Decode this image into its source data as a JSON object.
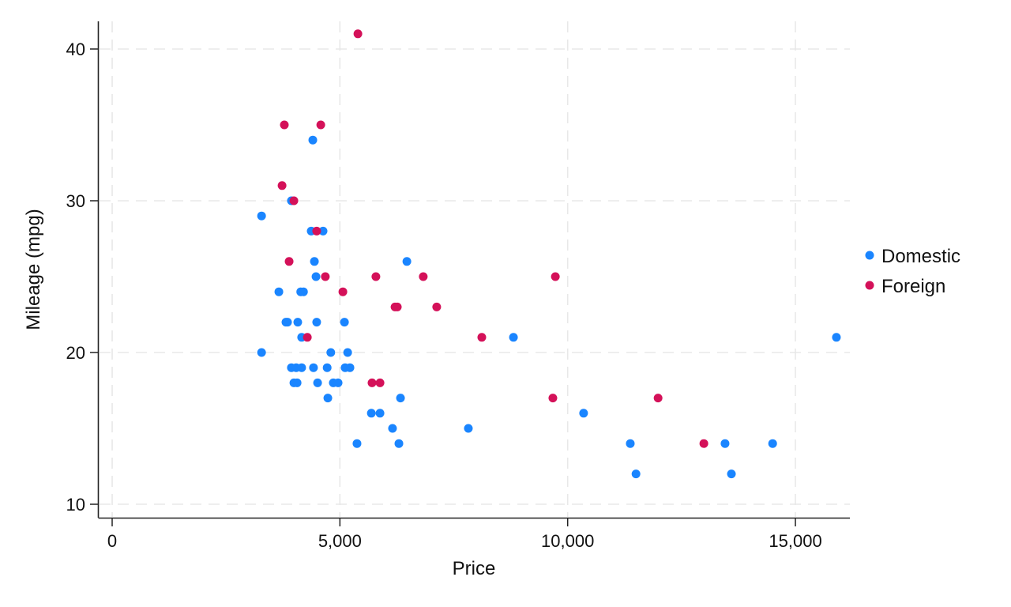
{
  "chart_data": {
    "type": "scatter",
    "title": "",
    "xlabel": "Price",
    "ylabel": "Mileage (mpg)",
    "xlim": [
      -600,
      16000
    ],
    "ylim": [
      9,
      42
    ],
    "xticks": [
      0,
      5000,
      10000,
      15000
    ],
    "xtick_labels": [
      "0",
      "5,000",
      "10,000",
      "15,000"
    ],
    "yticks": [
      10,
      20,
      30,
      40
    ],
    "ytick_labels": [
      "10",
      "20",
      "30",
      "40"
    ],
    "grid": true,
    "legend_position": "right",
    "series": [
      {
        "name": "Domestic",
        "color": "#1a85ff",
        "points": [
          [
            3280,
            29
          ],
          [
            3280,
            20
          ],
          [
            3660,
            24
          ],
          [
            4140,
            24
          ],
          [
            4200,
            24
          ],
          [
            3815,
            22
          ],
          [
            3850,
            22
          ],
          [
            4075,
            22
          ],
          [
            4490,
            22
          ],
          [
            5100,
            22
          ],
          [
            4160,
            21
          ],
          [
            8810,
            21
          ],
          [
            15900,
            21
          ],
          [
            4800,
            20
          ],
          [
            5170,
            20
          ],
          [
            3935,
            19
          ],
          [
            4040,
            19
          ],
          [
            4160,
            19
          ],
          [
            4420,
            19
          ],
          [
            4720,
            19
          ],
          [
            5115,
            19
          ],
          [
            5220,
            19
          ],
          [
            3990,
            18
          ],
          [
            4060,
            18
          ],
          [
            4510,
            18
          ],
          [
            4855,
            18
          ],
          [
            4960,
            18
          ],
          [
            4735,
            17
          ],
          [
            6330,
            17
          ],
          [
            5690,
            16
          ],
          [
            5880,
            16
          ],
          [
            10350,
            16
          ],
          [
            6155,
            15
          ],
          [
            7820,
            15
          ],
          [
            5375,
            14
          ],
          [
            6295,
            14
          ],
          [
            11375,
            14
          ],
          [
            13455,
            14
          ],
          [
            14500,
            14
          ],
          [
            11500,
            12
          ],
          [
            13595,
            12
          ],
          [
            4440,
            26
          ],
          [
            6470,
            26
          ],
          [
            4475,
            25
          ],
          [
            4370,
            28
          ],
          [
            4630,
            28
          ],
          [
            3935,
            30
          ],
          [
            4405,
            34
          ]
        ]
      },
      {
        "name": "Foreign",
        "color": "#d41159",
        "points": [
          [
            5395,
            41
          ],
          [
            3780,
            35
          ],
          [
            4580,
            35
          ],
          [
            3730,
            31
          ],
          [
            3990,
            30
          ],
          [
            4490,
            28
          ],
          [
            3885,
            26
          ],
          [
            4680,
            25
          ],
          [
            5790,
            25
          ],
          [
            6830,
            25
          ],
          [
            9730,
            25
          ],
          [
            5065,
            24
          ],
          [
            6210,
            23
          ],
          [
            6260,
            23
          ],
          [
            7125,
            23
          ],
          [
            4285,
            21
          ],
          [
            8115,
            21
          ],
          [
            5705,
            18
          ],
          [
            5880,
            18
          ],
          [
            9675,
            17
          ],
          [
            11985,
            17
          ],
          [
            12990,
            14
          ]
        ]
      }
    ]
  },
  "legend": {
    "items": [
      {
        "label": "Domestic",
        "color": "#1a85ff"
      },
      {
        "label": "Foreign",
        "color": "#d41159"
      }
    ]
  },
  "axes": {
    "x_title": "Price",
    "y_title": "Mileage (mpg)"
  }
}
